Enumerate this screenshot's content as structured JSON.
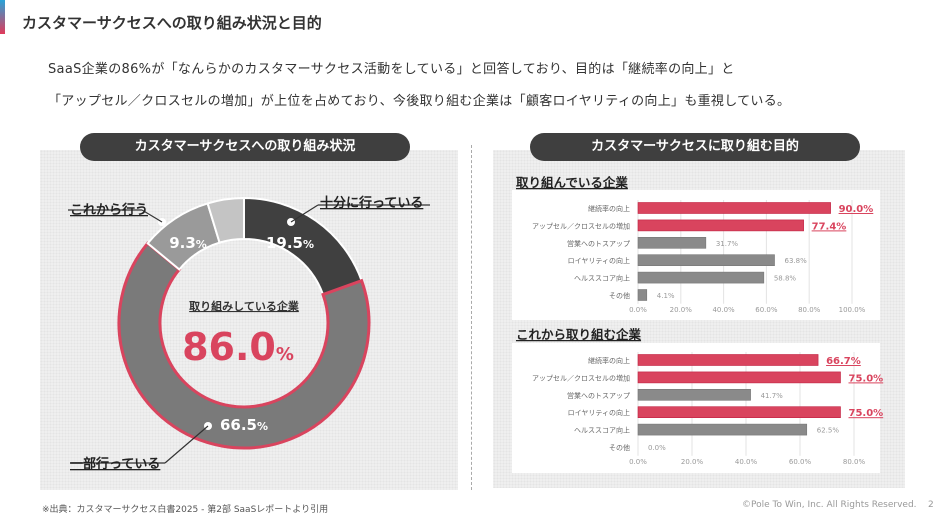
{
  "title": "カスタマーサクセスへの取り組み状況と目的",
  "lead": [
    "SaaS企業の86%が「なんらかのカスタマーサクセス活動をしている」と回答しており、目的は「継続率の向上」と",
    "「アップセル／クロスセルの増加」が上位を占めており、今後取り組む企業は「顧客ロイヤリティの向上」も重視している。"
  ],
  "left_header": "カスタマーサクセスへの取り組み状況",
  "right_header": "カスタマーサクセスに取り組む目的",
  "source": "※出典：カスタマーサクセス白書2025 - 第2部 SaaSレポートより引用",
  "copyright": "©Pole To Win, Inc. All Rights Reserved.",
  "page": "2",
  "colors": {
    "accent": "#d9445e",
    "dark": "#404040",
    "mid": "#7a7a7a",
    "light": "#9a9a9a",
    "lighter": "#c4c4c4",
    "bar_gray": "#8a8a8a"
  },
  "chart_data": [
    {
      "type": "pie",
      "donut": true,
      "center_label": "取り組みしている企業",
      "center_value": "86.0",
      "center_unit": "%",
      "slices": [
        {
          "label": "十分に行っている",
          "value": 19.5,
          "text": "19.5",
          "color": "#404040"
        },
        {
          "label": "一部行っている",
          "value": 66.5,
          "text": "66.5",
          "color": "#7a7a7a"
        },
        {
          "label": "これから行う",
          "value": 9.3,
          "text": "9.3",
          "color": "#9a9a9a"
        },
        {
          "label": "",
          "value": 4.7,
          "text": "",
          "color": "#c4c4c4"
        }
      ],
      "unit": "%"
    },
    {
      "type": "bar",
      "orientation": "horizontal",
      "title": "取り組んでいる企業",
      "categories": [
        "継続率の向上",
        "アップセル／クロスセルの増加",
        "営業へのトスアップ",
        "ロイヤリティの向上",
        "ヘルススコア向上",
        "その他"
      ],
      "values": [
        90.0,
        77.4,
        31.7,
        63.8,
        58.8,
        4.1
      ],
      "highlight": [
        true,
        true,
        false,
        false,
        false,
        false
      ],
      "xlim": [
        0,
        100
      ],
      "ticks": [
        "0.0%",
        "20.0%",
        "40.0%",
        "60.0%",
        "80.0%",
        "100.0%"
      ],
      "grid": true
    },
    {
      "type": "bar",
      "orientation": "horizontal",
      "title": "これから取り組む企業",
      "categories": [
        "継続率の向上",
        "アップセル／クロスセルの増加",
        "営業へのトスアップ",
        "ロイヤリティの向上",
        "ヘルススコア向上",
        "その他"
      ],
      "values": [
        66.7,
        75.0,
        41.7,
        75.0,
        62.5,
        0.0
      ],
      "highlight": [
        true,
        true,
        false,
        true,
        false,
        false
      ],
      "xlim": [
        0,
        80
      ],
      "ticks": [
        "0.0%",
        "20.0%",
        "40.0%",
        "60.0%",
        "80.0%"
      ],
      "grid": true
    }
  ]
}
